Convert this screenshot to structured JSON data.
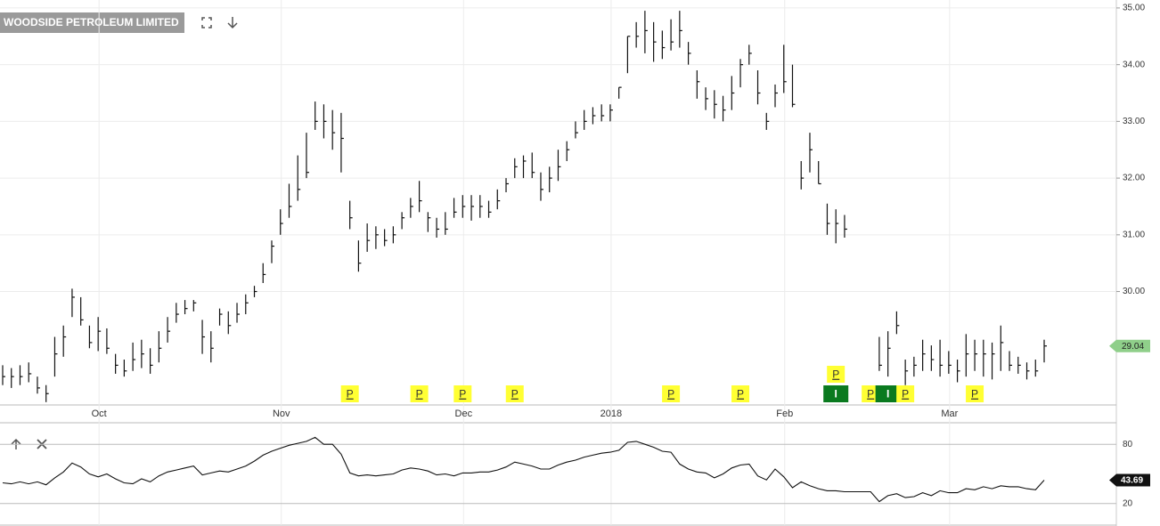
{
  "chart_data": [
    {
      "type": "ohlc",
      "title": "WOODSIDE PETROLEUM LIMITED",
      "categories": [
        null,
        null,
        null,
        null,
        null,
        null,
        null,
        null,
        null,
        null,
        null,
        "Oct",
        null,
        null,
        null,
        null,
        null,
        null,
        null,
        null,
        null,
        null,
        null,
        null,
        null,
        null,
        null,
        null,
        null,
        null,
        null,
        null,
        "Nov",
        null,
        null,
        null,
        null,
        null,
        null,
        null,
        null,
        null,
        null,
        null,
        null,
        null,
        null,
        null,
        null,
        null,
        null,
        null,
        null,
        "Dec",
        null,
        null,
        null,
        null,
        null,
        null,
        null,
        null,
        null,
        null,
        null,
        null,
        null,
        null,
        null,
        null,
        "2018",
        null,
        null,
        null,
        null,
        null,
        null,
        null,
        null,
        null,
        null,
        null,
        null,
        null,
        null,
        null,
        null,
        null,
        null,
        null,
        "Feb",
        null,
        null,
        null,
        null,
        null,
        null,
        null,
        null,
        null,
        null,
        null,
        null,
        null,
        null,
        null,
        null,
        null,
        null,
        "Mar",
        null,
        null,
        null,
        null,
        null,
        null,
        null,
        null,
        null,
        null,
        null
      ],
      "high": [
        28.7,
        28.65,
        28.7,
        28.75,
        28.5,
        28.35,
        29.2,
        29.4,
        30.05,
        29.9,
        29.4,
        29.55,
        29.35,
        28.9,
        28.8,
        29.1,
        29.15,
        29.0,
        29.3,
        29.55,
        29.8,
        29.85,
        29.85,
        29.5,
        29.3,
        29.7,
        29.65,
        29.8,
        29.95,
        30.1,
        30.5,
        30.9,
        31.45,
        31.9,
        32.4,
        32.8,
        33.35,
        33.3,
        33.2,
        33.15,
        31.6,
        30.9,
        31.2,
        31.15,
        31.1,
        31.15,
        31.4,
        31.65,
        31.95,
        31.4,
        31.3,
        31.4,
        31.65,
        31.7,
        31.7,
        31.7,
        31.6,
        31.8,
        32.0,
        32.35,
        32.4,
        32.45,
        32.1,
        32.2,
        32.5,
        32.65,
        33.0,
        33.2,
        33.25,
        33.3,
        33.3,
        33.6,
        34.5,
        34.75,
        34.95,
        34.75,
        34.6,
        34.8,
        34.95,
        34.4,
        33.9,
        33.6,
        33.55,
        33.45,
        33.8,
        34.1,
        34.35,
        33.9,
        33.15,
        33.65,
        34.35,
        34.0,
        32.3,
        32.8,
        32.3,
        31.55,
        31.45,
        31.35,
        null,
        null,
        null,
        29.2,
        29.3,
        29.65,
        28.8,
        28.85,
        29.15,
        29.05,
        29.15,
        28.95,
        28.8,
        29.25,
        29.15,
        29.15,
        29.1,
        29.4,
        28.95,
        28.85,
        28.75,
        28.8,
        29.15
      ],
      "low": [
        28.35,
        28.3,
        28.35,
        28.4,
        28.2,
        28.05,
        28.5,
        28.85,
        29.55,
        29.4,
        29.0,
        28.95,
        28.9,
        28.55,
        28.5,
        28.6,
        28.65,
        28.55,
        28.75,
        29.1,
        29.45,
        29.6,
        29.65,
        28.9,
        28.75,
        29.4,
        29.25,
        29.45,
        29.6,
        29.9,
        30.15,
        30.5,
        31.0,
        31.3,
        31.6,
        32.0,
        32.85,
        32.7,
        32.5,
        32.1,
        31.1,
        30.35,
        30.7,
        30.75,
        30.8,
        30.85,
        31.1,
        31.3,
        31.4,
        31.05,
        30.95,
        31.0,
        31.3,
        31.3,
        31.25,
        31.3,
        31.3,
        31.45,
        31.75,
        32.0,
        32.0,
        32.0,
        31.6,
        31.75,
        31.95,
        32.3,
        32.7,
        32.85,
        32.95,
        33.0,
        33.0,
        33.4,
        33.85,
        34.3,
        34.2,
        34.05,
        34.1,
        34.25,
        34.3,
        34.0,
        33.4,
        33.2,
        33.05,
        33.0,
        33.2,
        33.6,
        34.0,
        33.3,
        32.85,
        33.25,
        33.5,
        33.25,
        31.8,
        32.1,
        31.9,
        31.0,
        30.85,
        30.95,
        null,
        null,
        null,
        28.6,
        28.5,
        29.25,
        28.35,
        28.5,
        28.6,
        28.6,
        28.5,
        28.55,
        28.4,
        28.5,
        28.6,
        28.5,
        28.45,
        28.6,
        28.6,
        28.55,
        28.45,
        28.5,
        28.75
      ],
      "close": [
        28.5,
        28.5,
        28.5,
        28.55,
        28.3,
        28.2,
        28.9,
        29.2,
        29.9,
        29.5,
        29.1,
        29.3,
        29.0,
        28.7,
        28.6,
        28.8,
        28.9,
        28.7,
        29.0,
        29.3,
        29.6,
        29.7,
        29.8,
        29.2,
        29.0,
        29.6,
        29.4,
        29.6,
        29.8,
        30.0,
        30.3,
        30.8,
        31.2,
        31.5,
        31.8,
        32.1,
        33.0,
        33.0,
        32.8,
        32.7,
        31.3,
        30.5,
        30.9,
        31.0,
        30.9,
        31.0,
        31.3,
        31.5,
        31.6,
        31.3,
        31.1,
        31.1,
        31.4,
        31.5,
        31.5,
        31.5,
        31.4,
        31.6,
        31.9,
        32.2,
        32.3,
        32.1,
        31.8,
        32.0,
        32.2,
        32.5,
        32.8,
        33.0,
        33.1,
        33.1,
        33.2,
        33.6,
        34.5,
        34.5,
        34.6,
        34.4,
        34.3,
        34.4,
        34.6,
        34.2,
        33.7,
        33.4,
        33.3,
        33.2,
        33.5,
        34.0,
        34.2,
        33.5,
        33.0,
        33.5,
        33.7,
        33.3,
        32.0,
        32.5,
        31.9,
        31.2,
        31.2,
        31.1,
        null,
        null,
        null,
        28.7,
        29.0,
        29.4,
        28.6,
        28.7,
        28.9,
        28.8,
        28.7,
        28.7,
        28.6,
        28.9,
        28.9,
        28.9,
        28.9,
        29.1,
        28.7,
        28.7,
        28.6,
        28.6,
        29.04
      ],
      "color": "#111111",
      "last_color": "#8fcf8a",
      "ylim": [
        28,
        35.14
      ],
      "yticks": [
        {
          "value": 30,
          "label": "30.00"
        },
        {
          "value": 31,
          "label": "31.00"
        },
        {
          "value": 32,
          "label": "32.00"
        },
        {
          "value": 33,
          "label": "33.00"
        },
        {
          "value": 34,
          "label": "34.00"
        },
        {
          "value": 35,
          "label": "35.00"
        }
      ],
      "grid": true,
      "markers": [
        {
          "label": "P",
          "index": 40
        },
        {
          "label": "P",
          "index": 48
        },
        {
          "label": "P",
          "index": 53
        },
        {
          "label": "P",
          "index": 59
        },
        {
          "label": "P",
          "index": 77
        },
        {
          "label": "P",
          "index": 85
        },
        {
          "label": "I",
          "index": 96
        },
        {
          "label": "P",
          "index": 96
        },
        {
          "label": "P",
          "index": 100
        },
        {
          "label": "I",
          "index": 102
        },
        {
          "label": "P",
          "index": 104
        },
        {
          "label": "P",
          "index": 112
        }
      ]
    },
    {
      "type": "line",
      "values": [
        41,
        40,
        42,
        40,
        42,
        39,
        46,
        52,
        61,
        57,
        50,
        47,
        50,
        45,
        41,
        40,
        45,
        42,
        48,
        52,
        54,
        56,
        58,
        49,
        51,
        53,
        52,
        55,
        58,
        63,
        69,
        73,
        76,
        79,
        81,
        83,
        87,
        80,
        80,
        70,
        51,
        48,
        49,
        48,
        49,
        50,
        54,
        56,
        55,
        53,
        49,
        50,
        48,
        51,
        51,
        52,
        52,
        54,
        57,
        62,
        60,
        58,
        55,
        55,
        59,
        62,
        64,
        67,
        69,
        71,
        72,
        74,
        82,
        83,
        80,
        77,
        73,
        72,
        60,
        55,
        52,
        51,
        46,
        50,
        56,
        59,
        60,
        48,
        44,
        55,
        47,
        36,
        42,
        38,
        35,
        33,
        33,
        32,
        32,
        32,
        32,
        22,
        28,
        30,
        26,
        27,
        31,
        28,
        33,
        31,
        31,
        35,
        34,
        37,
        35,
        38,
        37,
        37,
        35,
        34,
        43.69
      ],
      "color": "#111111",
      "ylim": [
        0,
        100
      ],
      "yticks": [
        20,
        80
      ],
      "grid": true
    }
  ]
}
